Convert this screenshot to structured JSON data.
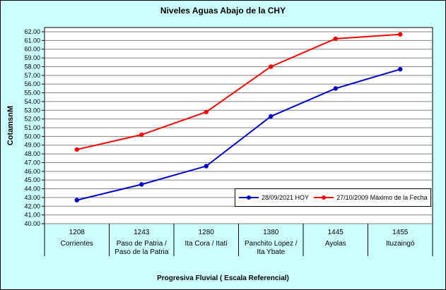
{
  "chart_data": {
    "type": "line",
    "title": "Niveles Aguas Abajo de la CHY",
    "xlabel": "Progresiva Fluvial ( Escala Referencial)",
    "ylabel": "CotamsnM",
    "ylim": [
      40,
      62
    ],
    "ytick_step": 1,
    "ytick_decimals": 2,
    "grid": true,
    "legend_position": "bottom-right-inside",
    "colors": {
      "background": "#CCFFFF",
      "plot_background": "#FFFFFF",
      "gridline": "#808080",
      "border": "#000000"
    },
    "categories": [
      {
        "km": "1208",
        "name_lines": [
          "Corrientes"
        ]
      },
      {
        "km": "1243",
        "name_lines": [
          "Paso de Patria /",
          "Paso de la Patria"
        ]
      },
      {
        "km": "1280",
        "name_lines": [
          "Ita Cora / Itatí"
        ]
      },
      {
        "km": "1380",
        "name_lines": [
          "Panchito Lopez /",
          "Ita Ybate"
        ]
      },
      {
        "km": "1445",
        "name_lines": [
          "Ayolas"
        ]
      },
      {
        "km": "1455",
        "name_lines": [
          "Ituzaingó"
        ]
      }
    ],
    "series": [
      {
        "name": "28/09/2021 HOY",
        "color": "#0000CC",
        "values": [
          42.7,
          44.5,
          46.6,
          52.3,
          55.5,
          57.7
        ]
      },
      {
        "name": "27/10/2009 Máximo de la Fecha",
        "color": "#FF0000",
        "values": [
          48.5,
          50.2,
          52.8,
          58.0,
          61.2,
          61.7
        ]
      }
    ]
  }
}
